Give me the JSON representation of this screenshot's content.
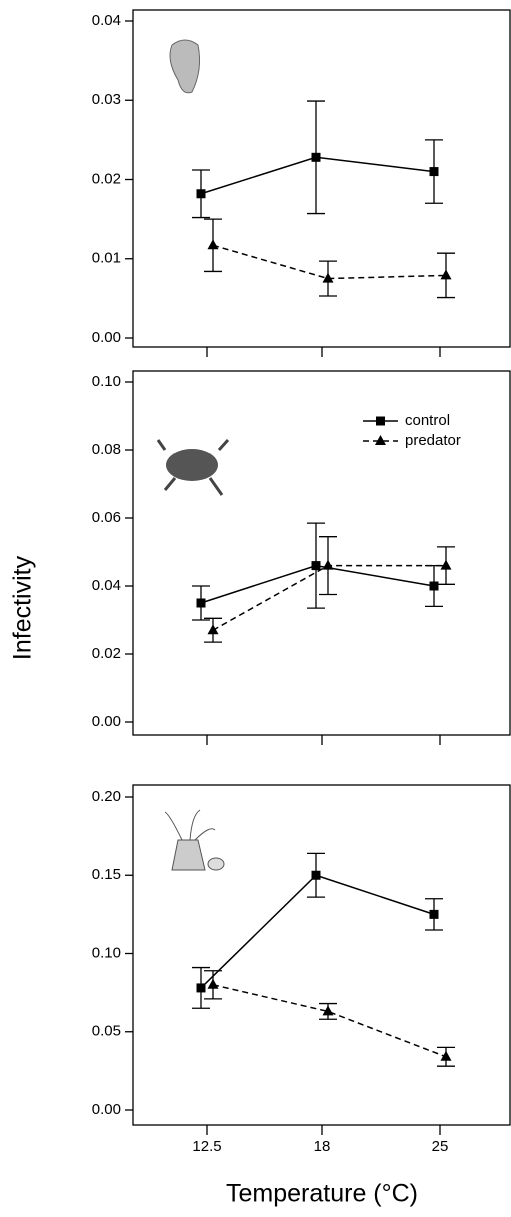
{
  "chart_data": [
    {
      "type": "line",
      "ylim": [
        0,
        0.04
      ],
      "yticks": [
        {
          "value": 0,
          "label": "0.00"
        },
        {
          "value": 0.01,
          "label": "0.01"
        },
        {
          "value": 0.02,
          "label": "0.02"
        },
        {
          "value": 0.03,
          "label": "0.03"
        },
        {
          "value": 0.04,
          "label": "0.04"
        }
      ],
      "series": [
        {
          "color": "#000000",
          "dash": "solid",
          "marker": "square",
          "values": [
            0.0182,
            0.0228,
            0.021
          ],
          "errors": [
            0.003,
            0.0071,
            0.004
          ]
        },
        {
          "color": "#000000",
          "dash": "dashed",
          "marker": "triangle",
          "values": [
            0.0117,
            0.0075,
            0.0079
          ],
          "errors": [
            0.0033,
            0.0022,
            0.0028
          ]
        }
      ]
    },
    {
      "type": "line",
      "ylabel": "Infectivity",
      "legend": "upper right",
      "ylim": [
        0,
        0.1
      ],
      "yticks": [
        {
          "value": 0,
          "label": "0.00"
        },
        {
          "value": 0.02,
          "label": "0.02"
        },
        {
          "value": 0.04,
          "label": "0.04"
        },
        {
          "value": 0.06,
          "label": "0.06"
        },
        {
          "value": 0.08,
          "label": "0.08"
        },
        {
          "value": 0.1,
          "label": "0.10"
        }
      ],
      "series": [
        {
          "name": "control",
          "color": "#000000",
          "dash": "solid",
          "marker": "square",
          "values": [
            0.035,
            0.046,
            0.04
          ],
          "errors": [
            0.005,
            0.0125,
            0.006
          ]
        },
        {
          "name": "predator",
          "color": "#000000",
          "dash": "dashed",
          "marker": "triangle",
          "values": [
            0.027,
            0.046,
            0.046
          ],
          "errors": [
            0.0035,
            0.0085,
            0.0055
          ]
        }
      ]
    },
    {
      "type": "line",
      "xlabel": "Temperature (°C)",
      "categories": [
        "12.5",
        "18",
        "25"
      ],
      "ylim": [
        0,
        0.2
      ],
      "yticks": [
        {
          "value": 0,
          "label": "0.00"
        },
        {
          "value": 0.05,
          "label": "0.05"
        },
        {
          "value": 0.1,
          "label": "0.10"
        },
        {
          "value": 0.15,
          "label": "0.15"
        },
        {
          "value": 0.2,
          "label": "0.20"
        }
      ],
      "series": [
        {
          "color": "#000000",
          "dash": "solid",
          "marker": "square",
          "values": [
            0.078,
            0.15,
            0.125
          ],
          "errors": [
            0.013,
            0.014,
            0.01
          ]
        },
        {
          "color": "#000000",
          "dash": "dashed",
          "marker": "triangle",
          "values": [
            0.08,
            0.063,
            0.034
          ],
          "errors": [
            0.009,
            0.005,
            0.006
          ]
        }
      ]
    }
  ]
}
